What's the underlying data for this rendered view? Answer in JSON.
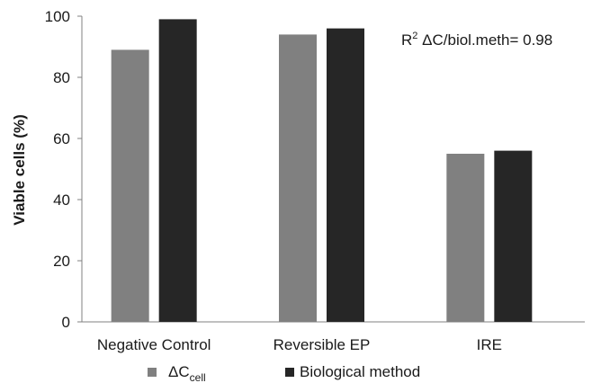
{
  "chart_data": {
    "type": "bar",
    "categories": [
      "Negative Control",
      "Reversible EP",
      "IRE"
    ],
    "series": [
      {
        "name": "ΔCcell",
        "name_main": "ΔC",
        "name_sub": "cell",
        "values": [
          89,
          94,
          55
        ],
        "color": "#808080"
      },
      {
        "name": "Biological method",
        "values": [
          99,
          96,
          56
        ],
        "color": "#262626"
      }
    ],
    "ylabel": "Viable cells (%)",
    "xlabel": "",
    "ylim": [
      0,
      100
    ],
    "yticks": [
      0,
      20,
      40,
      60,
      80,
      100
    ],
    "annotation": {
      "r_letter": "R",
      "r_power": "2",
      "rest": " ΔC/biol.meth= 0.98"
    },
    "legend_position": "bottom",
    "grid": false
  }
}
